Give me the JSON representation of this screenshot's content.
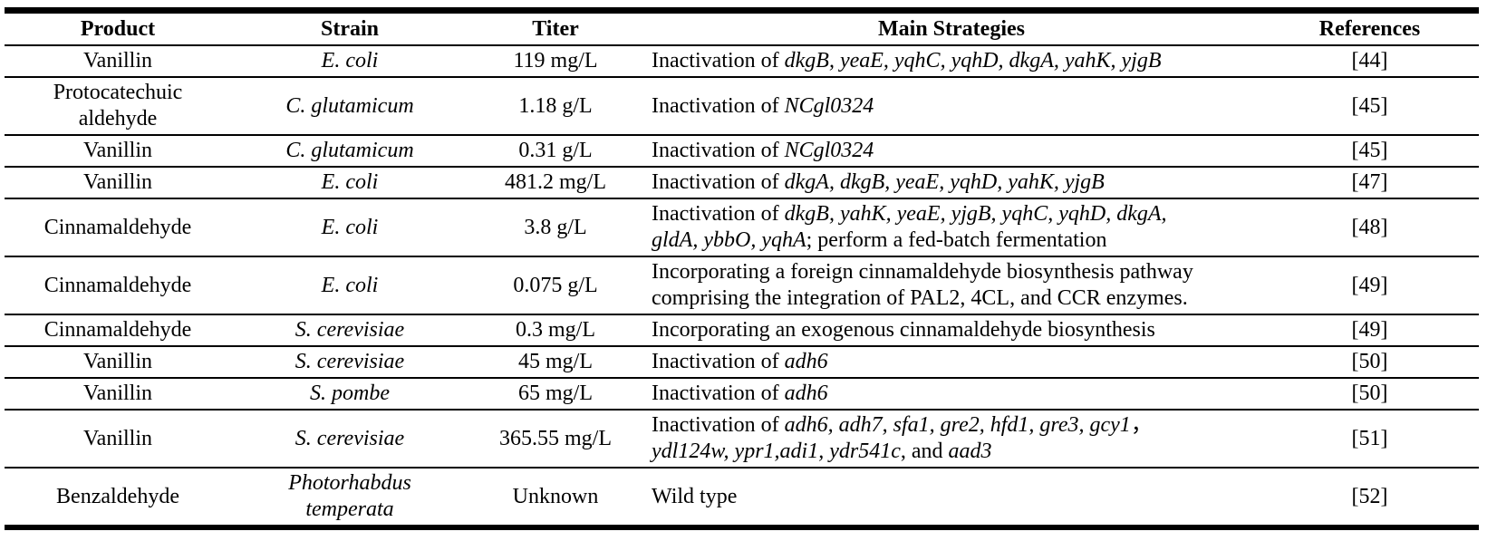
{
  "table": {
    "columns": [
      {
        "key": "product",
        "label": "Product"
      },
      {
        "key": "strain",
        "label": "Strain"
      },
      {
        "key": "titer",
        "label": "Titer"
      },
      {
        "key": "strategy",
        "label": "Main Strategies"
      },
      {
        "key": "reference",
        "label": "References"
      }
    ],
    "rows": [
      {
        "product": "Vanillin",
        "strain": "E. coli",
        "titer": "119 mg/L",
        "strategy": [
          {
            "t": "Inactivation of "
          },
          {
            "t": "dkgB, yeaE, yqhC, yqhD, dkgA, yahK, yjgB",
            "i": true
          }
        ],
        "reference": "[44]"
      },
      {
        "product": "Protocatechuic\naldehyde",
        "strain": "C. glutamicum",
        "titer": "1.18 g/L",
        "strategy": [
          {
            "t": "Inactivation of "
          },
          {
            "t": "NCgl0324",
            "i": true
          }
        ],
        "reference": "[45]"
      },
      {
        "product": "Vanillin",
        "strain": "C. glutamicum",
        "titer": "0.31 g/L",
        "strategy": [
          {
            "t": "Inactivation of "
          },
          {
            "t": "NCgl0324",
            "i": true
          }
        ],
        "reference": "[45]"
      },
      {
        "product": "Vanillin",
        "strain": "E. coli",
        "titer": "481.2 mg/L",
        "strategy": [
          {
            "t": "Inactivation of "
          },
          {
            "t": "dkgA, dkgB, yeaE, yqhD, yahK, yjgB",
            "i": true
          }
        ],
        "reference": "[47]"
      },
      {
        "product": "Cinnamaldehyde",
        "strain": "E. coli",
        "titer": "3.8 g/L",
        "strategy": [
          {
            "t": "Inactivation of "
          },
          {
            "t": "dkgB, yahK, yeaE, yjgB, yqhC, yqhD, dkgA,",
            "i": true
          },
          {
            "br": true
          },
          {
            "t": "gldA, ybbO, yqhA",
            "i": true
          },
          {
            "t": "; perform a fed-batch fermentation"
          }
        ],
        "reference": "[48]"
      },
      {
        "product": "Cinnamaldehyde",
        "strain": "E. coli",
        "titer": "0.075 g/L",
        "strategy": [
          {
            "t": "Incorporating a foreign cinnamaldehyde biosynthesis pathway"
          },
          {
            "br": true
          },
          {
            "t": "comprising the integration of PAL2, 4CL, and CCR enzymes."
          }
        ],
        "reference": "[49]"
      },
      {
        "product": "Cinnamaldehyde",
        "strain": "S. cerevisiae",
        "titer": "0.3 mg/L",
        "strategy": [
          {
            "t": "Incorporating an exogenous cinnamaldehyde biosynthesis"
          }
        ],
        "reference": "[49]"
      },
      {
        "product": "Vanillin",
        "strain": "S. cerevisiae",
        "titer": "45 mg/L",
        "strategy": [
          {
            "t": "Inactivation of "
          },
          {
            "t": "adh6",
            "i": true
          }
        ],
        "reference": "[50]"
      },
      {
        "product": "Vanillin",
        "strain": "S. pombe",
        "titer": "65 mg/L",
        "strategy": [
          {
            "t": "Inactivation of "
          },
          {
            "t": "adh6",
            "i": true
          }
        ],
        "reference": "[50]"
      },
      {
        "product": "Vanillin",
        "strain": "S. cerevisiae",
        "titer": "365.55 mg/L",
        "strategy": [
          {
            "t": "Inactivation of "
          },
          {
            "t": "adh6, adh7, sfa1, gre2, hfd1, gre3, gcy1",
            "i": true
          },
          {
            "t": "，"
          },
          {
            "br": true
          },
          {
            "t": "ydl124w, ypr1,adi1, ydr541c",
            "i": true
          },
          {
            "t": ", and "
          },
          {
            "t": "aad3",
            "i": true
          }
        ],
        "reference": "[51]"
      },
      {
        "product": "Benzaldehyde",
        "strain": "Photorhabdus\ntemperata",
        "titer": "Unknown",
        "strategy": [
          {
            "t": "Wild type"
          }
        ],
        "reference": "[52]"
      }
    ],
    "colors": {
      "rule": "#000000",
      "text": "#000000",
      "background": "#ffffff"
    }
  }
}
